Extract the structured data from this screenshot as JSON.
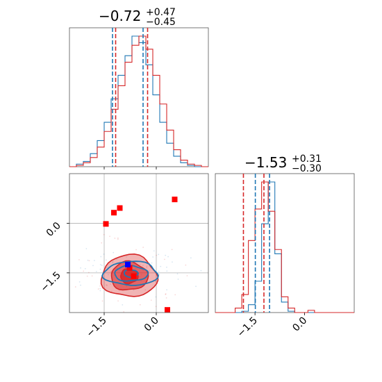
{
  "chart_data": {
    "type": "corner",
    "titles": {
      "param1": {
        "median": "−0.72",
        "plus": "+0.47",
        "minus": "−0.45"
      },
      "param2": {
        "median": "−1.53",
        "plus": "+0.31",
        "minus": "−0.30"
      }
    },
    "colors": {
      "blue": "#1f77b4",
      "red": "#d62728",
      "marker_red": "#ff0000",
      "marker_blue": "#0000ff"
    },
    "axes": {
      "param1_range": [
        -2.5,
        1.5
      ],
      "param2_range": [
        -2.7,
        1.5
      ],
      "ticks": [
        -1.5,
        0.0
      ],
      "tick_labels": [
        "−1.5",
        "0.0"
      ],
      "grid": true
    },
    "hist_param1": {
      "bin_edges": [
        -2.5,
        -2.3,
        -2.1,
        -1.9,
        -1.7,
        -1.5,
        -1.3,
        -1.1,
        -0.9,
        -0.7,
        -0.5,
        -0.3,
        -0.1,
        0.1,
        0.3,
        0.5,
        0.7,
        0.9,
        1.1,
        1.3,
        1.5
      ],
      "blue": [
        0,
        2,
        4,
        10,
        20,
        34,
        52,
        70,
        85,
        100,
        95,
        78,
        55,
        34,
        18,
        8,
        3,
        1,
        0,
        0
      ],
      "red": [
        0,
        1,
        3,
        7,
        15,
        27,
        44,
        62,
        80,
        93,
        100,
        90,
        70,
        48,
        28,
        13,
        5,
        2,
        1,
        0
      ],
      "blue_quantiles": [
        -1.26,
        -0.38
      ],
      "red_quantiles": [
        -1.17,
        -0.25
      ]
    },
    "hist_param2": {
      "bin_edges": [
        -2.7,
        -2.5,
        -2.3,
        -2.1,
        -1.9,
        -1.7,
        -1.5,
        -1.3,
        -1.1,
        -0.9,
        -0.7,
        -0.5,
        -0.3,
        -0.1,
        0.1,
        0.3,
        0.5,
        0.7,
        0.9,
        1.1,
        1.3,
        1.5
      ],
      "blue": [
        0,
        0,
        0,
        0,
        1,
        6,
        24,
        68,
        100,
        45,
        8,
        1,
        0,
        0,
        0,
        0,
        0,
        0,
        0,
        0,
        0
      ],
      "red": [
        0,
        0,
        0,
        2,
        8,
        32,
        46,
        58,
        45,
        28,
        7,
        2,
        0,
        0,
        1,
        0,
        0,
        0,
        0,
        0,
        0
      ],
      "blue_quantiles": [
        -1.49,
        -1.06
      ],
      "red_quantiles": [
        -1.85,
        -1.23
      ]
    },
    "contours_2d": {
      "blue": {
        "center": [
          -0.73,
          -1.52
        ],
        "radii": [
          [
            0.2,
            0.11
          ],
          [
            0.48,
            0.23
          ],
          [
            0.78,
            0.36
          ]
        ]
      },
      "red": {
        "center": [
          -0.78,
          -1.6
        ],
        "radii": [
          [
            0.25,
            0.22
          ],
          [
            0.53,
            0.43
          ],
          [
            0.8,
            0.63
          ]
        ]
      }
    },
    "markers_red": [
      [
        -1.45,
        -0.02
      ],
      [
        -1.22,
        0.32
      ],
      [
        -1.05,
        0.46
      ],
      [
        0.53,
        0.72
      ],
      [
        -0.77,
        -1.35
      ],
      [
        -0.65,
        -1.6
      ],
      [
        0.32,
        -2.62
      ]
    ],
    "markers_blue": [
      [
        -0.82,
        -1.25
      ]
    ]
  }
}
